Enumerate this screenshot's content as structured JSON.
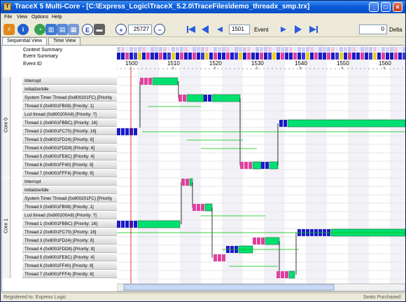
{
  "window": {
    "title": "TraceX 5 Multi-Core - [C:\\Express_Logic\\TraceX_5.2.0\\TraceFiles\\demo_threadx_smp.trx]",
    "icon_letter": "T"
  },
  "menu": [
    "File",
    "View",
    "Options",
    "Help"
  ],
  "toolbar": {
    "zoom_value": "25727",
    "event_value": "1501",
    "event_label": "Event",
    "delta_value": "0",
    "delta_label": "Delta"
  },
  "tabs": [
    "Sequential View",
    "Time View"
  ],
  "header": {
    "context_summary": "Context Summary",
    "event_summary": "Event Summary",
    "event_id": "Event ID",
    "ticks": [
      "1500",
      "1510",
      "1520",
      "1530",
      "1540",
      "1550",
      "1560"
    ]
  },
  "cores": [
    {
      "label": "Core 0"
    },
    {
      "label": "Core 1"
    }
  ],
  "rows": [
    "Interrupt",
    "Initialize/Idle",
    "System Timer Thread (0x800201FC) [Priority",
    "Thread 0 (0x8001FB08) [Priority: 1]",
    "Lcd thread (0x800200A8) [Priority: ?]",
    "Thread 1 (0x8001FBBC) [Priority: 16]",
    "Thread 2 (0x8001FC70) [Priority: 16]",
    "Thread 3 (0x8001FD24) [Priority: 8]",
    "Thread 4 (0x8001FDD8) [Priority: 8]",
    "Thread 5 (0x8001FE8C) [Priority: 4]",
    "Thread 6 (0x8001FF40) [Priority: 8]",
    "Thread 7 (0x8001FFF4) [Priority: 8]"
  ],
  "status": {
    "left": "Registered to: Express Logic",
    "right": "Seats Purchased: "
  },
  "colors": {
    "running": "#00e070",
    "event_q": "#1a1ac8",
    "event_pink": "#e0409c",
    "event_yellow": "#e8d020",
    "cursor": "#e00000",
    "wait_line": "#00c000"
  }
}
